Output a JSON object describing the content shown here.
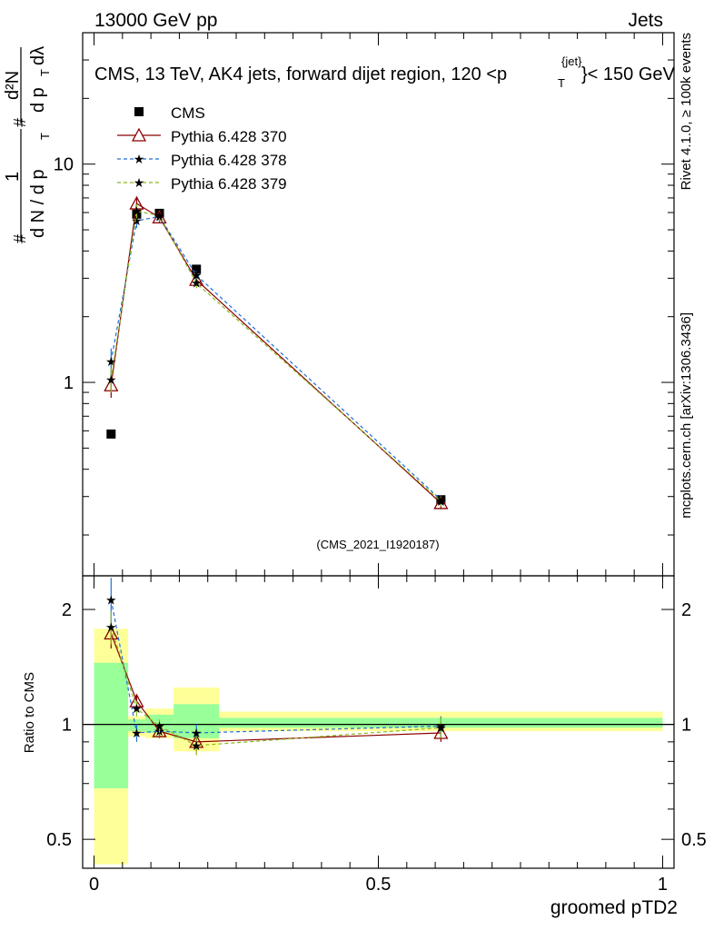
{
  "header": {
    "left": "13000 GeV pp",
    "right": "Jets"
  },
  "side_labels": {
    "rivet": "Rivet 4.1.0, ≥ 100k events",
    "mcplots": "mcplots.cern.ch [arXiv:1306.3436]"
  },
  "chart_data": [
    {
      "type": "line",
      "title": "CMS, 13 TeV, AK4 jets, forward dijet region, 120 <p_T^{jet}< 150 GeV",
      "title_parts": {
        "main": "CMS, 13 TeV, AK4 jets, forward dijet region, 120 <p",
        "sub": "T",
        "sup": "{jet}",
        "tail": "}< 150 GeV"
      },
      "ylabel": "1/(dN/dpT) d²N/(dpT dλ)",
      "ylabel_parts": {
        "hash": "#",
        "one": "1",
        "den": "d N / d p",
        "sub": "T",
        "num": "d²N",
        "num_den": "d p",
        "lambda": "dλ"
      },
      "yscale": "log",
      "ylim": [
        0.13,
        40
      ],
      "xlim": [
        -0.02,
        1.02
      ],
      "yticks": [
        {
          "v": 1,
          "label": "1"
        },
        {
          "v": 10,
          "label": "10"
        }
      ],
      "watermark": "(CMS_2021_I1920187)",
      "legend": [
        "CMS",
        "Pythia 6.428 370",
        "Pythia 6.428 378",
        "Pythia 6.428 379"
      ],
      "series": [
        {
          "name": "CMS",
          "color": "#000000",
          "x": [
            0.03,
            0.075,
            0.115,
            0.18,
            0.61
          ],
          "y": [
            0.58,
            5.9,
            5.95,
            3.3,
            0.29
          ]
        },
        {
          "name": "Pythia 6.428 370",
          "color": "#8b0000",
          "x": [
            0.03,
            0.075,
            0.115,
            0.18,
            0.61
          ],
          "y": [
            0.97,
            6.6,
            5.7,
            2.95,
            0.28
          ],
          "err": [
            0.12,
            0.5,
            0.3,
            0.15,
            0.015
          ]
        },
        {
          "name": "Pythia 6.428 378",
          "color": "#1e6fd9",
          "x": [
            0.03,
            0.075,
            0.115,
            0.18,
            0.61
          ],
          "y": [
            1.25,
            5.5,
            5.75,
            3.1,
            0.29
          ],
          "err": [
            0.18,
            0.4,
            0.3,
            0.15,
            0.015
          ]
        },
        {
          "name": "Pythia 6.428 379",
          "color": "#8ab81a",
          "x": [
            0.03,
            0.075,
            0.115,
            0.18,
            0.61
          ],
          "y": [
            1.03,
            6.1,
            5.8,
            2.85,
            0.285
          ],
          "err": [
            0.13,
            0.45,
            0.3,
            0.15,
            0.015
          ]
        }
      ]
    },
    {
      "type": "line",
      "title": "",
      "xlabel": "groomed pTD2",
      "ylabel": "Ratio to CMS",
      "yscale": "log",
      "ylim": [
        0.42,
        2.45
      ],
      "xlim": [
        -0.02,
        1.02
      ],
      "xticks": [
        {
          "v": 0,
          "label": "0"
        },
        {
          "v": 0.5,
          "label": "0.5"
        },
        {
          "v": 1,
          "label": "1"
        }
      ],
      "yticks": [
        {
          "v": 0.5,
          "label": "0.5"
        },
        {
          "v": 1,
          "label": "1"
        },
        {
          "v": 2,
          "label": "2"
        }
      ],
      "bands": {
        "x_edges": [
          0.0,
          0.06,
          0.09,
          0.14,
          0.22,
          1.0
        ],
        "yellow_lo": [
          0.43,
          0.93,
          0.92,
          0.85,
          0.96
        ],
        "yellow_hi": [
          1.78,
          1.05,
          1.1,
          1.25,
          1.08
        ],
        "green_lo": [
          0.68,
          0.96,
          0.95,
          0.92,
          0.98
        ],
        "green_hi": [
          1.45,
          1.03,
          1.06,
          1.13,
          1.04
        ]
      },
      "series": [
        {
          "name": "Pythia 6.428 370",
          "color": "#8b0000",
          "x": [
            0.03,
            0.075,
            0.115,
            0.18,
            0.61
          ],
          "y": [
            1.73,
            1.15,
            0.96,
            0.9,
            0.95
          ],
          "err": [
            0.15,
            0.05,
            0.04,
            0.05,
            0.05
          ]
        },
        {
          "name": "Pythia 6.428 378",
          "color": "#1e6fd9",
          "x": [
            0.03,
            0.075,
            0.115,
            0.18,
            0.61
          ],
          "y": [
            2.12,
            0.95,
            0.96,
            0.95,
            0.99
          ],
          "err": [
            0.3,
            0.05,
            0.04,
            0.05,
            0.06
          ]
        },
        {
          "name": "Pythia 6.428 379",
          "color": "#8ab81a",
          "x": [
            0.03,
            0.075,
            0.115,
            0.18,
            0.61
          ],
          "y": [
            1.8,
            1.1,
            0.99,
            0.88,
            0.98
          ],
          "err": [
            0.18,
            0.05,
            0.04,
            0.05,
            0.06
          ]
        }
      ]
    }
  ]
}
